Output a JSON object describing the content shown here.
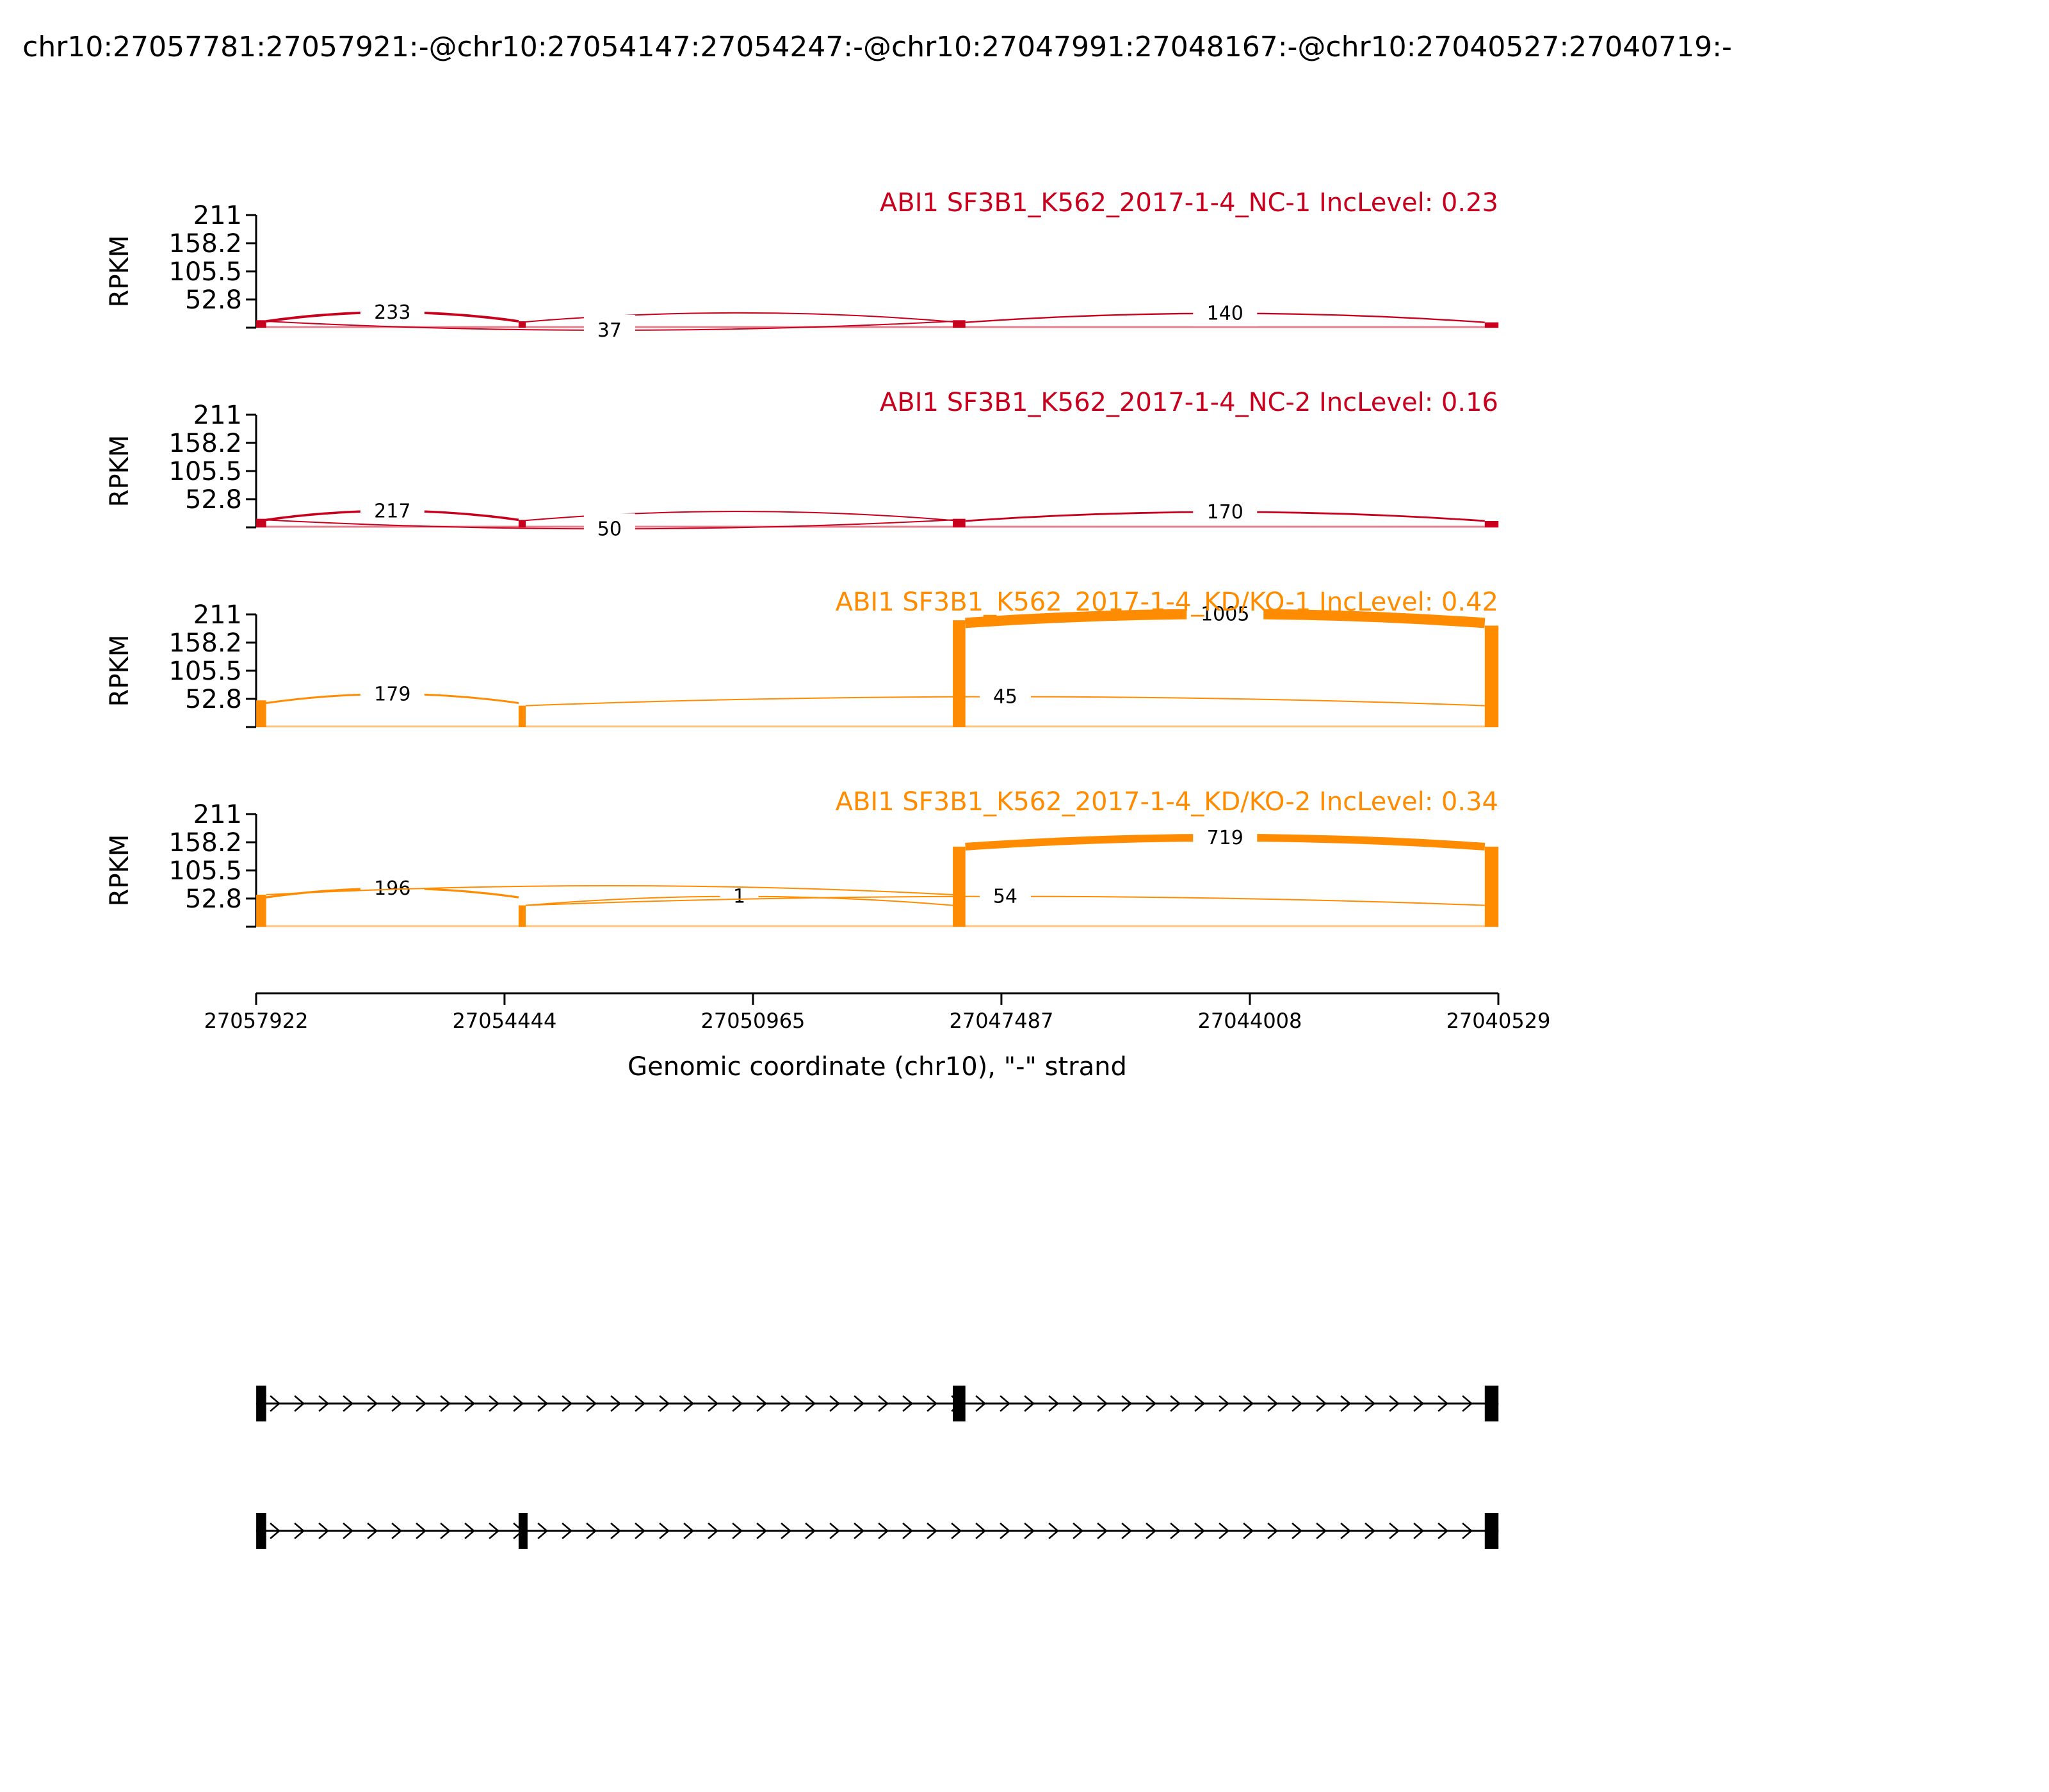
{
  "chart_data": {
    "type": "sashimi",
    "title": "chr10:27057781:27057921:-@chr10:27054147:27054247:-@chr10:27047991:27048167:-@chr10:27040527:27040719:-",
    "x_axis": {
      "label": "Genomic coordinate (chr10), \"-\" strand",
      "range": [
        27057922,
        27040529
      ],
      "ticks": [
        "27057922",
        "27054444",
        "27050965",
        "27047487",
        "27044008",
        "27040529"
      ]
    },
    "y_axis": {
      "label": "RPKM",
      "range": [
        0,
        211
      ],
      "ticks": [
        "211",
        "158.2",
        "105.5",
        "52.8"
      ]
    },
    "colors": {
      "control": "#c8001e",
      "knockdown": "#ff8c00"
    },
    "exons": [
      {
        "start": 27057921,
        "end": 27057781
      },
      {
        "start": 27054247,
        "end": 27054147
      },
      {
        "start": 27048167,
        "end": 27047991
      },
      {
        "start": 27040719,
        "end": 27040527
      }
    ],
    "tracks": [
      {
        "label": "ABI1 SF3B1_K562_2017-1-4_NC-1 IncLevel: 0.23",
        "group": "control",
        "exon_coverage": [
          14,
          12,
          14,
          10
        ],
        "junctions": [
          {
            "from": 27057781,
            "to": 27054247,
            "count": "233",
            "level": 12,
            "arch": "over"
          },
          {
            "from": 27054147,
            "to": 27048167,
            "count": "",
            "level": 11,
            "arch": "over"
          },
          {
            "from": 27057781,
            "to": 27048167,
            "count": "37",
            "level": 12,
            "arch": "under"
          },
          {
            "from": 27047991,
            "to": 27040719,
            "count": "140",
            "level": 10,
            "arch": "over"
          }
        ]
      },
      {
        "label": "ABI1 SF3B1_K562_2017-1-4_NC-2 IncLevel: 0.16",
        "group": "control",
        "exon_coverage": [
          16,
          14,
          16,
          12
        ],
        "junctions": [
          {
            "from": 27057781,
            "to": 27054247,
            "count": "217",
            "level": 14,
            "arch": "over"
          },
          {
            "from": 27054147,
            "to": 27048167,
            "count": "",
            "level": 13,
            "arch": "over"
          },
          {
            "from": 27057781,
            "to": 27048167,
            "count": "50",
            "level": 14,
            "arch": "under"
          },
          {
            "from": 27047991,
            "to": 27040719,
            "count": "170",
            "level": 12,
            "arch": "over"
          }
        ]
      },
      {
        "label": "ABI1 SF3B1_K562_2017-1-4_KD/KO-1 IncLevel: 0.42",
        "group": "knockdown",
        "exon_coverage": [
          50,
          40,
          200,
          190
        ],
        "junctions": [
          {
            "from": 27057781,
            "to": 27054247,
            "count": "179",
            "level": 45,
            "arch": "over"
          },
          {
            "from": 27054147,
            "to": 27040719,
            "count": "45",
            "level": 40,
            "arch": "over"
          },
          {
            "from": 27047991,
            "to": 27040719,
            "count": "1005",
            "level": 195,
            "arch": "over"
          }
        ]
      },
      {
        "label": "ABI1 SF3B1_K562_2017-1-4_KD/KO-2 IncLevel: 0.34",
        "group": "knockdown",
        "exon_coverage": [
          60,
          40,
          150,
          150
        ],
        "junctions": [
          {
            "from": 27057781,
            "to": 27054247,
            "count": "196",
            "level": 55,
            "arch": "over"
          },
          {
            "from": 27054147,
            "to": 27048167,
            "count": "1",
            "level": 40,
            "arch": "over"
          },
          {
            "from": 27057781,
            "to": 27048167,
            "count": "",
            "level": 60,
            "arch": "over"
          },
          {
            "from": 27054147,
            "to": 27040719,
            "count": "54",
            "level": 40,
            "arch": "over"
          },
          {
            "from": 27047991,
            "to": 27040719,
            "count": "719",
            "level": 150,
            "arch": "over"
          }
        ]
      }
    ],
    "isoforms": [
      {
        "exons": [
          0,
          2,
          3
        ]
      },
      {
        "exons": [
          0,
          1,
          3
        ]
      }
    ]
  }
}
